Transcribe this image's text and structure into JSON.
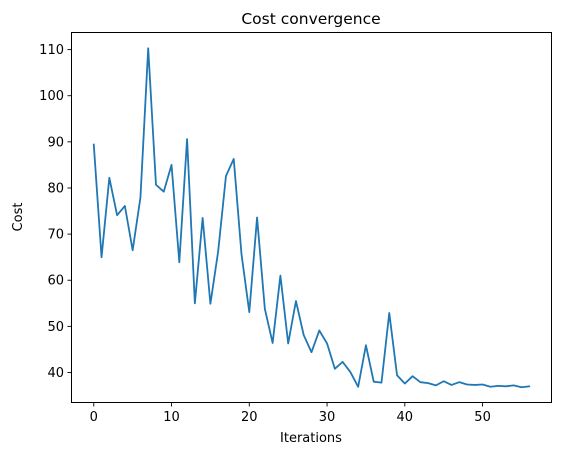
{
  "chart_data": {
    "type": "line",
    "title": "Cost convergence",
    "xlabel": "Iterations",
    "ylabel": "Cost",
    "xlim": [
      -2.8,
      58.8
    ],
    "ylim": [
      33.6,
      113.6
    ],
    "xticks": [
      0,
      10,
      20,
      30,
      40,
      50
    ],
    "yticks": [
      40,
      50,
      60,
      70,
      80,
      90,
      100,
      110
    ],
    "grid": false,
    "series": [
      {
        "color": "#1f77b4",
        "x": [
          0,
          1,
          2,
          3,
          4,
          5,
          6,
          7,
          8,
          9,
          10,
          11,
          12,
          13,
          14,
          15,
          16,
          17,
          18,
          19,
          20,
          21,
          22,
          23,
          24,
          25,
          26,
          27,
          28,
          29,
          30,
          31,
          32,
          33,
          34,
          35,
          36,
          37,
          38,
          39,
          40,
          41,
          42,
          43,
          44,
          45,
          46,
          47,
          48,
          49,
          50,
          51,
          52,
          53,
          54,
          55,
          56
        ],
        "values": [
          89.4,
          65.0,
          82.2,
          74.1,
          76.1,
          66.5,
          77.9,
          110.3,
          80.7,
          79.2,
          85.0,
          63.9,
          90.6,
          55.0,
          73.5,
          54.9,
          66.3,
          82.6,
          86.3,
          65.6,
          53.1,
          73.6,
          53.8,
          46.4,
          61.0,
          46.3,
          55.5,
          48.1,
          44.4,
          49.1,
          46.3,
          40.8,
          42.3,
          40.1,
          36.9,
          45.9,
          38.0,
          37.8,
          52.9,
          39.4,
          37.6,
          39.2,
          37.9,
          37.7,
          37.2,
          38.1,
          37.3,
          37.9,
          37.4,
          37.3,
          37.4,
          36.9,
          37.1,
          37.0,
          37.2,
          36.8,
          37.0
        ]
      }
    ]
  }
}
